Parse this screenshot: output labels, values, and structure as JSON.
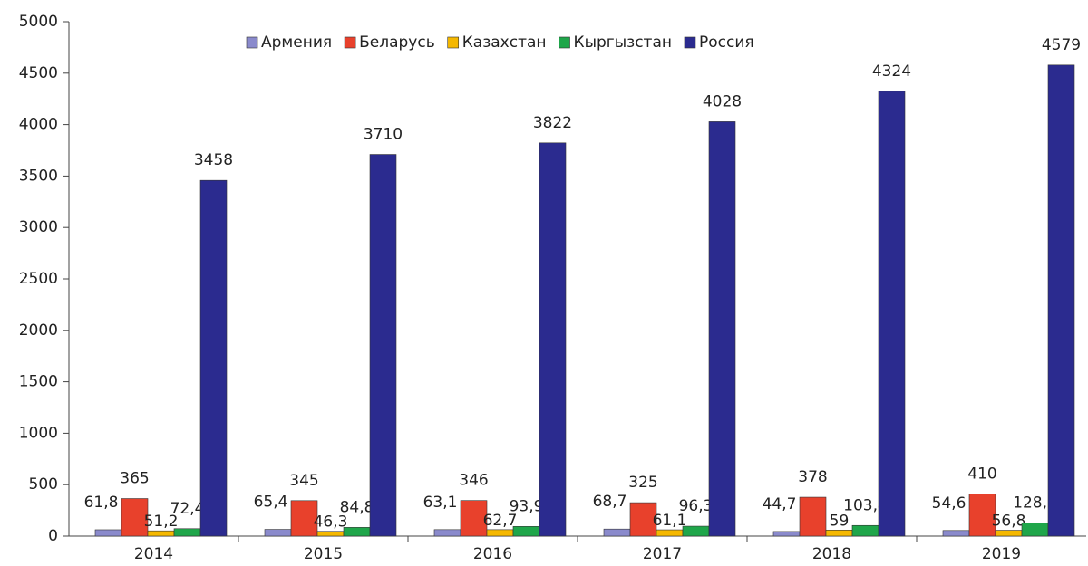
{
  "chart_data": {
    "type": "bar",
    "categories": [
      "2014",
      "2015",
      "2016",
      "2017",
      "2018",
      "2019"
    ],
    "series": [
      {
        "name": "Армения",
        "color": "#8a8acc",
        "values": [
          61.8,
          65.4,
          63.1,
          68.7,
          44.7,
          54.6
        ],
        "value_labels": [
          "61,8",
          "65,4",
          "63,1",
          "68,7",
          "44,7",
          "54,6"
        ]
      },
      {
        "name": "Беларусь",
        "color": "#e8412c",
        "values": [
          365,
          345,
          346,
          325,
          378,
          410
        ],
        "value_labels": [
          "365",
          "345",
          "346",
          "325",
          "378",
          "410"
        ]
      },
      {
        "name": "Казахстан",
        "color": "#f5b800",
        "values": [
          51.2,
          46.3,
          62.7,
          61.1,
          59,
          56.8
        ],
        "value_labels": [
          "51,2",
          "46,3",
          "62,7",
          "61,1",
          "59",
          "56,8"
        ]
      },
      {
        "name": "Кыргызстан",
        "color": "#1fa64a",
        "values": [
          72.4,
          84.8,
          93.9,
          96.3,
          103.4,
          128.6
        ],
        "value_labels": [
          "72,4",
          "84,8",
          "93,9",
          "96,3",
          "103,4",
          "128,6"
        ]
      },
      {
        "name": "Россия",
        "color": "#2b2b8f",
        "values": [
          3458,
          3710,
          3822,
          4028,
          4324,
          4579
        ],
        "value_labels": [
          "3458",
          "3710",
          "3822",
          "4028",
          "4324",
          "4579"
        ]
      }
    ],
    "ylim": [
      0,
      5000
    ],
    "yticks": [
      0,
      500,
      1000,
      1500,
      2000,
      2500,
      3000,
      3500,
      4000,
      4500,
      5000
    ],
    "grid": false,
    "legend": "top"
  }
}
